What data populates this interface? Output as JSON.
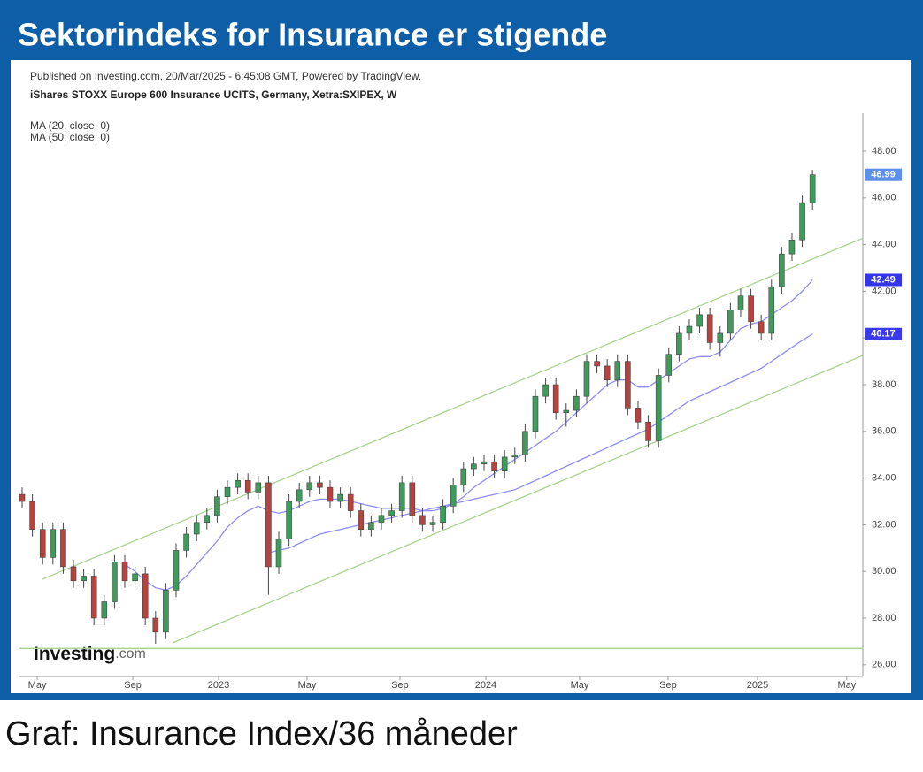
{
  "header": {
    "title": "Sektorindeks for Insurance er stigende"
  },
  "caption": "Graf: Insurance Index/36 måneder",
  "chart_data": {
    "type": "candlestick",
    "title": "Published on Investing.com, 20/Mar/2025 - 6:45:08 GMT, Powered by TradingView.",
    "subtitle": "iShares STOXX Europe 600 Insurance UCITS, Germany, Xetra:SXIPEX, W",
    "logo": "Investing",
    "logo_suffix": ".com",
    "up_color": "#3f9a5c",
    "down_color": "#b5433f",
    "close_label_color": "#5b8ff0",
    "categories": [
      null,
      null,
      null,
      null,
      null,
      null,
      null,
      null,
      null,
      null,
      null,
      null,
      null,
      null,
      null,
      null,
      null,
      null,
      null,
      null,
      null,
      null,
      null,
      null,
      null,
      null,
      null,
      null,
      null,
      null,
      null,
      null,
      null,
      null,
      null,
      null,
      null,
      null,
      null,
      null,
      null,
      null,
      null,
      null,
      null,
      null,
      null,
      null,
      null,
      null,
      null,
      null,
      null,
      null,
      null,
      null,
      null,
      null,
      null,
      null,
      null,
      null,
      null,
      null,
      null,
      null,
      null,
      null,
      null,
      null,
      null,
      null,
      null,
      null,
      null,
      null,
      null,
      null
    ],
    "open": [
      33.3,
      33.0,
      31.8,
      30.6,
      31.8,
      30.2,
      29.6,
      29.8,
      28.0,
      28.7,
      30.4,
      29.6,
      29.9,
      28.0,
      27.4,
      29.2,
      30.9,
      31.6,
      32.1,
      32.4,
      33.2,
      33.6,
      33.9,
      33.4,
      33.8,
      30.2,
      31.4,
      33.0,
      33.5,
      33.8,
      33.6,
      33.0,
      33.3,
      32.6,
      31.8,
      32.1,
      32.4,
      32.6,
      33.8,
      32.4,
      32.0,
      32.1,
      32.8,
      33.7,
      34.4,
      34.6,
      34.7,
      34.3,
      34.9,
      35.0,
      36.0,
      37.5,
      38.0,
      36.8,
      36.9,
      37.5,
      39.0,
      38.8,
      38.2,
      39.0,
      37.0,
      36.4,
      35.6,
      38.4,
      39.3,
      40.2,
      40.5,
      41.0,
      39.8,
      40.2,
      41.2,
      41.8,
      40.7,
      40.2,
      42.2,
      43.6,
      44.2,
      45.8
    ],
    "high": [
      33.6,
      33.3,
      32.1,
      32.1,
      32.1,
      30.5,
      30.1,
      30.1,
      29.0,
      30.7,
      30.7,
      30.2,
      30.2,
      28.3,
      29.5,
      31.2,
      31.9,
      32.4,
      32.7,
      33.5,
      33.9,
      34.2,
      34.2,
      34.1,
      34.1,
      31.7,
      33.3,
      33.8,
      34.1,
      34.1,
      33.9,
      33.6,
      33.6,
      32.9,
      32.4,
      32.7,
      32.9,
      34.1,
      34.1,
      32.7,
      32.4,
      33.1,
      34.0,
      34.7,
      34.9,
      35.0,
      35.0,
      35.2,
      35.3,
      36.3,
      37.8,
      38.3,
      38.3,
      37.2,
      37.8,
      39.3,
      39.3,
      39.1,
      39.3,
      39.3,
      37.3,
      36.7,
      38.7,
      39.6,
      40.5,
      40.8,
      41.3,
      41.3,
      40.5,
      41.5,
      42.1,
      42.1,
      41.0,
      42.5,
      43.9,
      44.5,
      46.1,
      47.2
    ],
    "low": [
      32.7,
      31.5,
      30.3,
      30.3,
      29.9,
      29.3,
      29.3,
      27.7,
      27.7,
      28.4,
      29.3,
      29.3,
      27.7,
      26.9,
      27.1,
      28.9,
      30.6,
      31.3,
      31.8,
      32.1,
      32.9,
      33.3,
      33.1,
      33.1,
      29.0,
      29.9,
      31.1,
      32.7,
      33.2,
      33.3,
      32.7,
      32.7,
      32.3,
      31.5,
      31.5,
      31.8,
      32.1,
      32.3,
      32.1,
      31.7,
      31.7,
      31.8,
      32.5,
      33.4,
      34.1,
      34.3,
      34.0,
      34.0,
      34.6,
      34.7,
      35.7,
      37.2,
      36.5,
      36.2,
      36.6,
      37.2,
      38.5,
      37.9,
      37.9,
      36.7,
      36.1,
      35.3,
      35.3,
      38.1,
      39.0,
      39.9,
      40.2,
      39.5,
      39.2,
      39.9,
      40.9,
      40.4,
      39.9,
      39.9,
      41.9,
      43.3,
      43.9,
      45.5
    ],
    "close": [
      33.0,
      31.8,
      30.6,
      31.8,
      30.2,
      29.6,
      29.8,
      28.0,
      28.7,
      30.4,
      29.6,
      29.9,
      28.0,
      27.4,
      29.2,
      30.9,
      31.6,
      32.1,
      32.4,
      33.2,
      33.6,
      33.9,
      33.4,
      33.8,
      30.2,
      31.4,
      33.0,
      33.5,
      33.8,
      33.6,
      33.0,
      33.3,
      32.6,
      31.8,
      32.1,
      32.4,
      32.6,
      33.8,
      32.4,
      32.0,
      32.1,
      32.8,
      33.7,
      34.4,
      34.6,
      34.7,
      34.3,
      34.9,
      35.0,
      36.0,
      37.5,
      38.0,
      36.8,
      36.9,
      37.5,
      39.0,
      38.8,
      38.2,
      39.0,
      37.0,
      36.4,
      35.6,
      38.4,
      39.3,
      40.2,
      40.5,
      41.0,
      39.8,
      40.2,
      41.2,
      41.8,
      40.7,
      40.2,
      42.2,
      43.6,
      44.2,
      45.8,
      46.99
    ],
    "series": [
      {
        "name": "MA (20, close, 0)",
        "color": "#8f8cf2",
        "label_color": "#3434e8",
        "values": [
          null,
          null,
          null,
          null,
          null,
          null,
          null,
          null,
          null,
          null,
          30.3,
          30.0,
          29.6,
          29.3,
          29.2,
          29.4,
          29.8,
          30.3,
          30.8,
          31.3,
          31.9,
          32.3,
          32.6,
          32.8,
          32.6,
          32.5,
          32.6,
          32.8,
          33.0,
          33.1,
          33.1,
          33.1,
          33.0,
          32.9,
          32.8,
          32.7,
          32.7,
          32.7,
          32.7,
          32.6,
          32.6,
          32.7,
          32.9,
          33.2,
          33.6,
          33.9,
          34.2,
          34.5,
          34.8,
          35.1,
          35.4,
          35.7,
          36.0,
          36.4,
          36.8,
          37.2,
          37.6,
          38.0,
          38.2,
          38.2,
          37.9,
          37.9,
          38.2,
          38.5,
          38.8,
          39.1,
          39.2,
          39.2,
          39.4,
          39.9,
          40.4,
          40.6,
          40.7,
          41.0,
          41.3,
          41.6,
          42.0,
          42.49
        ]
      },
      {
        "name": "MA (50, close, 0)",
        "color": "#8f8cf2",
        "label_color": "#3a3aec",
        "values": [
          null,
          null,
          null,
          null,
          null,
          null,
          null,
          null,
          null,
          null,
          null,
          null,
          null,
          null,
          null,
          null,
          null,
          null,
          null,
          null,
          null,
          null,
          null,
          null,
          30.8,
          30.9,
          31.0,
          31.2,
          31.4,
          31.6,
          31.7,
          31.8,
          31.9,
          32.0,
          32.1,
          32.2,
          32.3,
          32.4,
          32.5,
          32.6,
          32.7,
          32.8,
          32.9,
          33.0,
          33.1,
          33.2,
          33.3,
          33.4,
          33.5,
          33.7,
          33.9,
          34.1,
          34.3,
          34.5,
          34.7,
          34.9,
          35.1,
          35.3,
          35.5,
          35.7,
          35.9,
          36.1,
          36.4,
          36.7,
          37.0,
          37.3,
          37.5,
          37.7,
          37.9,
          38.1,
          38.3,
          38.5,
          38.7,
          39.0,
          39.3,
          39.6,
          39.9,
          40.17
        ]
      }
    ],
    "trendlines": [
      {
        "color": "#a9d38f",
        "x": [
          1.98,
          81.9
        ],
        "y": [
          29.67,
          44.28
        ]
      },
      {
        "color": "#a9d38f",
        "x": [
          14.66,
          81.9
        ],
        "y": [
          26.94,
          39.25
        ]
      },
      {
        "color": "#a9d38f",
        "x": [
          -0.26,
          81.9
        ],
        "y": [
          26.7,
          26.7
        ]
      }
    ],
    "xlim": [
      -0.26,
      81.9
    ],
    "xticks": [
      {
        "value": 1.47,
        "label": "May"
      },
      {
        "value": 10.78,
        "label": "Sep"
      },
      {
        "value": 19.14,
        "label": "2023"
      },
      {
        "value": 27.76,
        "label": "May"
      },
      {
        "value": 36.81,
        "label": "Sep"
      },
      {
        "value": 45.17,
        "label": "2024"
      },
      {
        "value": 54.31,
        "label": "May"
      },
      {
        "value": 62.93,
        "label": "Sep"
      },
      {
        "value": 71.64,
        "label": "2025"
      },
      {
        "value": 80.34,
        "label": "May"
      }
    ],
    "ylim": [
      25.5,
      49.63
    ],
    "yticks": [
      {
        "value": 26,
        "label": "26.00"
      },
      {
        "value": 28,
        "label": "28.00"
      },
      {
        "value": 30,
        "label": "30.00"
      },
      {
        "value": 32,
        "label": "32.00"
      },
      {
        "value": 34,
        "label": "34.00"
      },
      {
        "value": 36,
        "label": "36.00"
      },
      {
        "value": 38,
        "label": "38.00"
      },
      {
        "value": 40,
        "label": "40.00"
      },
      {
        "value": 42,
        "label": "42.00"
      },
      {
        "value": 44,
        "label": "44.00"
      },
      {
        "value": 46,
        "label": "46.00"
      },
      {
        "value": 48,
        "label": "48.00"
      }
    ]
  }
}
